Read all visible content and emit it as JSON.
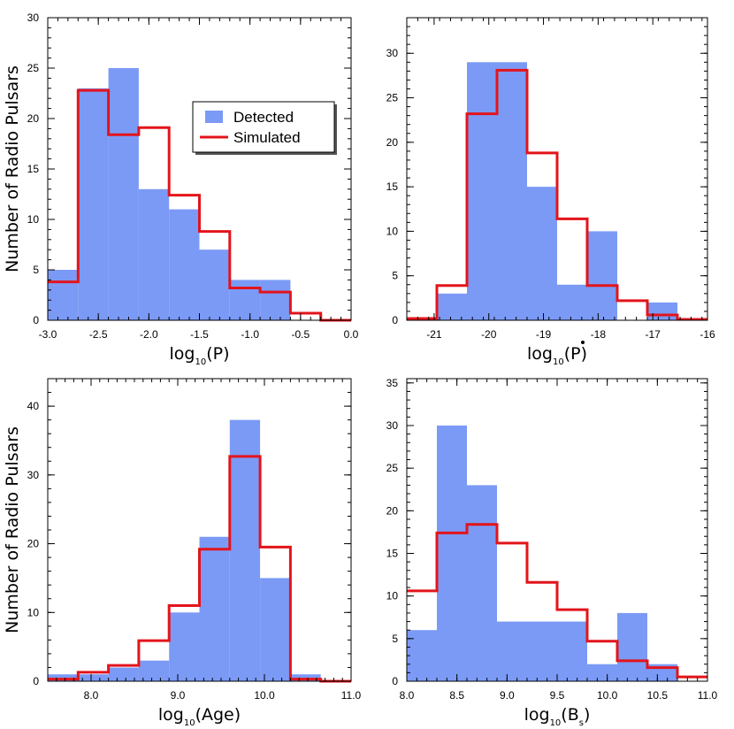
{
  "colors": {
    "detected": "#7b9af5",
    "simulated": "#e3141b",
    "axis": "#000000"
  },
  "chart_data": [
    {
      "type": "bar",
      "panel": "top-left",
      "xlabel_base": "log",
      "xlabel_sub": "10",
      "xlabel_arg": "(P)",
      "xlabel_dot": false,
      "ylabel": "Number of Radio Pulsars",
      "xlim": [
        -3.0,
        0.0
      ],
      "ylim": [
        0,
        30
      ],
      "xticks": [
        -3.0,
        -2.5,
        -2.0,
        -1.5,
        -1.0,
        -0.5,
        0.0
      ],
      "xtick_labels": [
        "-3.0",
        "-2.5",
        "-2.0",
        "-1.5",
        "-1.0",
        "-0.5",
        "0.0"
      ],
      "yticks": [
        0,
        5,
        10,
        15,
        20,
        25,
        30
      ],
      "ytick_labels": [
        "0",
        "5",
        "10",
        "15",
        "20",
        "25",
        "30"
      ],
      "minor_x": 0.1,
      "minor_y": 1,
      "detected": {
        "name": "Detected",
        "edges": [
          -3.0,
          -2.7,
          -2.4,
          -2.1,
          -1.8,
          -1.5,
          -1.2,
          -0.9,
          -0.6,
          -0.3,
          0.0
        ],
        "values": [
          5,
          23,
          25,
          13,
          11,
          7,
          4,
          4,
          0,
          0
        ]
      },
      "simulated": {
        "name": "Simulated",
        "edges": [
          -3.0,
          -2.7,
          -2.4,
          -2.1,
          -1.8,
          -1.5,
          -1.2,
          -0.9,
          -0.6,
          -0.3,
          0.0
        ],
        "values": [
          3.8,
          22.8,
          18.4,
          19.1,
          12.4,
          8.8,
          3.2,
          2.8,
          0.7,
          0.0
        ]
      },
      "legend": {
        "position": "top-right",
        "items": [
          "Detected",
          "Simulated"
        ]
      }
    },
    {
      "type": "bar",
      "panel": "top-right",
      "xlabel_base": "log",
      "xlabel_sub": "10",
      "xlabel_arg": "(P)",
      "xlabel_dot": true,
      "ylabel": "",
      "xlim": [
        -21.5,
        -16.0
      ],
      "ylim": [
        0,
        34
      ],
      "xticks": [
        -21,
        -20,
        -19,
        -18,
        -17,
        -16
      ],
      "xtick_labels": [
        "-21",
        "-20",
        "-19",
        "-18",
        "-17",
        "-16"
      ],
      "yticks": [
        0,
        5,
        10,
        15,
        20,
        25,
        30
      ],
      "ytick_labels": [
        "0",
        "5",
        "10",
        "15",
        "20",
        "25",
        "30"
      ],
      "minor_x": 0.2,
      "minor_y": 1,
      "detected": {
        "name": "Detected",
        "edges": [
          -21.5,
          -20.95,
          -20.4,
          -19.85,
          -19.3,
          -18.75,
          -18.2,
          -17.65,
          -17.1,
          -16.55,
          -16.0
        ],
        "values": [
          0,
          3,
          29,
          29,
          15,
          4,
          10,
          0,
          2,
          0
        ]
      },
      "simulated": {
        "name": "Simulated",
        "edges": [
          -21.5,
          -20.95,
          -20.4,
          -19.85,
          -19.3,
          -18.75,
          -18.2,
          -17.65,
          -17.1,
          -16.55,
          -16.0
        ],
        "values": [
          0.2,
          3.9,
          23.2,
          28.1,
          18.8,
          11.4,
          3.9,
          2.2,
          0.6,
          0.1
        ]
      }
    },
    {
      "type": "bar",
      "panel": "bottom-left",
      "xlabel_base": "log",
      "xlabel_sub": "10",
      "xlabel_arg": "(Age)",
      "xlabel_dot": false,
      "ylabel": "Number of Radio Pulsars",
      "xlim": [
        7.5,
        11.0
      ],
      "ylim": [
        0,
        44
      ],
      "xticks": [
        8.0,
        9.0,
        10.0,
        11.0
      ],
      "xtick_labels": [
        "8.0",
        "9.0",
        "10.0",
        "11.0"
      ],
      "yticks": [
        0,
        10,
        20,
        30,
        40
      ],
      "ytick_labels": [
        "0",
        "10",
        "20",
        "30",
        "40"
      ],
      "minor_x": 0.1,
      "minor_y": 2,
      "detected": {
        "name": "Detected",
        "edges": [
          7.5,
          7.85,
          8.2,
          8.55,
          8.9,
          9.25,
          9.6,
          9.95,
          10.3,
          10.65,
          11.0
        ],
        "values": [
          1,
          1,
          2,
          3,
          10,
          21,
          38,
          15,
          1,
          0
        ]
      },
      "simulated": {
        "name": "Simulated",
        "edges": [
          7.5,
          7.85,
          8.2,
          8.55,
          8.9,
          9.25,
          9.6,
          9.95,
          10.3,
          10.65,
          11.0
        ],
        "values": [
          0.3,
          1.3,
          2.3,
          5.9,
          11.0,
          19.2,
          32.7,
          19.5,
          0.3,
          0.0
        ]
      }
    },
    {
      "type": "bar",
      "panel": "bottom-right",
      "xlabel_base": "log",
      "xlabel_sub": "10",
      "xlabel_arg": "(B",
      "xlabel_arg_sub": "s",
      "xlabel_close": ")",
      "xlabel_dot": false,
      "ylabel": "",
      "xlim": [
        8.0,
        11.0
      ],
      "ylim": [
        0,
        35.5
      ],
      "xticks": [
        8.0,
        8.5,
        9.0,
        9.5,
        10.0,
        10.5,
        11.0
      ],
      "xtick_labels": [
        "8.0",
        "8.5",
        "9.0",
        "9.5",
        "10.0",
        "10.5",
        "11.0"
      ],
      "yticks": [
        0,
        5,
        10,
        15,
        20,
        25,
        30,
        35
      ],
      "ytick_labels": [
        "0",
        "5",
        "10",
        "15",
        "20",
        "25",
        "30",
        "35"
      ],
      "minor_x": 0.1,
      "minor_y": 1,
      "detected": {
        "name": "Detected",
        "edges": [
          8.0,
          8.3,
          8.6,
          8.9,
          9.2,
          9.5,
          9.8,
          10.1,
          10.4,
          10.7,
          11.0
        ],
        "values": [
          6,
          30,
          23,
          7,
          7,
          7,
          2,
          8,
          2,
          0
        ]
      },
      "simulated": {
        "name": "Simulated",
        "edges": [
          8.0,
          8.3,
          8.6,
          8.9,
          9.2,
          9.5,
          9.8,
          10.1,
          10.4,
          10.7,
          11.0
        ],
        "values": [
          10.6,
          17.4,
          18.4,
          16.2,
          11.6,
          8.4,
          4.7,
          2.4,
          1.6,
          0.5
        ]
      }
    }
  ]
}
